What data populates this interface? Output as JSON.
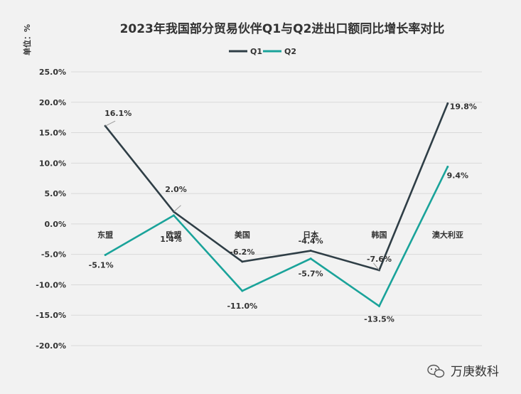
{
  "chart_data": {
    "type": "line",
    "title": "2023年我国部分贸易伙伴Q1与Q2进出口额同比增长率对比",
    "ylabel": "单位：%",
    "categories": [
      "东盟",
      "欧盟",
      "美国",
      "日本",
      "韩国",
      "澳大利亚"
    ],
    "series": [
      {
        "name": "Q1",
        "color": "#2f3e46",
        "values": [
          16.1,
          2.0,
          -6.2,
          -4.4,
          -7.6,
          19.8
        ],
        "labels": [
          "16.1%",
          "2.0%",
          "-6.2%",
          "-4.4%",
          "-7.6%",
          "19.8%"
        ]
      },
      {
        "name": "Q2",
        "color": "#1aa39a",
        "values": [
          -5.1,
          1.4,
          -11.0,
          -5.7,
          -13.5,
          9.4
        ],
        "labels": [
          "-5.1%",
          "1.4%",
          "-11.0%",
          "-5.7%",
          "-13.5%",
          "9.4%"
        ]
      }
    ],
    "ylim": [
      -20,
      25
    ],
    "yticks": [
      25,
      20,
      15,
      10,
      5,
      0,
      -5,
      -10,
      -15,
      -20
    ],
    "ytick_labels": [
      "25.0%",
      "20.0%",
      "15.0%",
      "10.0%",
      "5.0%",
      "0.0%",
      "-5.0%",
      "-10.0%",
      "-15.0%",
      "-20.0%"
    ],
    "grid": true,
    "legend": "top-center"
  },
  "watermark": {
    "text": "万庚数科"
  }
}
